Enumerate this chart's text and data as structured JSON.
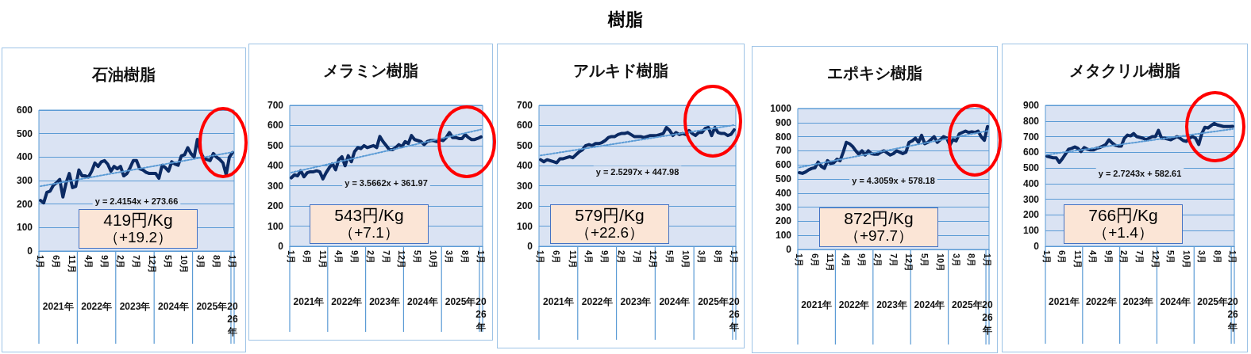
{
  "chart_data": [
    {
      "type": "line",
      "title": "石油樹脂",
      "categories": [
        "1月",
        null,
        null,
        null,
        null,
        "6月",
        null,
        null,
        null,
        null,
        "11月",
        null,
        null,
        null,
        null,
        "4月",
        null,
        null,
        null,
        null,
        "9月",
        null,
        null,
        null,
        null,
        "2月",
        null,
        null,
        null,
        null,
        "7月",
        null,
        null,
        null,
        null,
        "12月",
        null,
        null,
        null,
        null,
        "5月",
        null,
        null,
        null,
        null,
        "10月",
        null,
        null,
        null,
        null,
        "3月",
        null,
        null,
        null,
        null,
        "8月",
        null,
        null,
        null,
        null,
        "1月"
      ],
      "series": [
        {
          "color": "#0b2a63",
          "values": [
            215,
            205,
            250,
            255,
            280,
            290,
            305,
            230,
            290,
            330,
            270,
            275,
            345,
            320,
            320,
            315,
            340,
            375,
            360,
            380,
            385,
            370,
            340,
            360,
            350,
            360,
            320,
            330,
            355,
            385,
            385,
            350,
            345,
            335,
            330,
            330,
            330,
            310,
            365,
            355,
            340,
            380,
            370,
            365,
            405,
            410,
            440,
            415,
            400,
            475,
            420,
            395,
            390,
            385,
            415,
            400,
            390,
            375,
            325,
            400,
            419
          ]
        },
        {
          "name": "y = 2.4154x + 273.66",
          "color": "#5b9bd5",
          "line_style": "dotted",
          "values": [
            276,
            null,
            null,
            null,
            null,
            null,
            null,
            null,
            null,
            null,
            null,
            null,
            null,
            null,
            null,
            null,
            null,
            null,
            null,
            null,
            null,
            null,
            null,
            null,
            null,
            null,
            null,
            null,
            null,
            null,
            null,
            null,
            null,
            null,
            null,
            null,
            null,
            null,
            null,
            null,
            null,
            null,
            null,
            null,
            null,
            null,
            null,
            null,
            null,
            null,
            null,
            null,
            null,
            null,
            null,
            null,
            null,
            null,
            null,
            null,
            421
          ]
        }
      ],
      "ylim": [
        0,
        600
      ],
      "yticks": [
        0,
        100,
        200,
        300,
        400,
        500,
        600
      ],
      "grid": "y",
      "marker": "none",
      "annotations": [
        "419円/Kg",
        "（+19.2）",
        "2021年",
        "2022年",
        "2023年",
        "2024年",
        "2025年",
        "2026年",
        "樹脂"
      ]
    },
    {
      "type": "line",
      "title": "メラミン樹脂",
      "categories": [
        "1月",
        null,
        null,
        null,
        null,
        "6月",
        null,
        null,
        null,
        null,
        "11月",
        null,
        null,
        null,
        null,
        "4月",
        null,
        null,
        null,
        null,
        "9月",
        null,
        null,
        null,
        null,
        "2月",
        null,
        null,
        null,
        null,
        "7月",
        null,
        null,
        null,
        null,
        "12月",
        null,
        null,
        null,
        null,
        "5月",
        null,
        null,
        null,
        null,
        "10月",
        null,
        null,
        null,
        null,
        "3月",
        null,
        null,
        null,
        null,
        "8月",
        null,
        null,
        null,
        null,
        "1月"
      ],
      "series": [
        {
          "color": "#0b2a63",
          "values": [
            340,
            355,
            350,
            375,
            345,
            365,
            370,
            370,
            375,
            370,
            335,
            365,
            390,
            410,
            380,
            430,
            445,
            400,
            450,
            420,
            470,
            490,
            485,
            500,
            490,
            495,
            500,
            490,
            545,
            520,
            500,
            480,
            480,
            490,
            505,
            495,
            520,
            510,
            550,
            530,
            525,
            520,
            505,
            520,
            525,
            525,
            520,
            530,
            525,
            540,
            565,
            540,
            540,
            535,
            535,
            555,
            540,
            530,
            530,
            536,
            543
          ]
        },
        {
          "name": "y = 3.5662x + 361.97",
          "color": "#5b9bd5",
          "line_style": "dotted",
          "values": [
            366,
            null,
            null,
            null,
            null,
            null,
            null,
            null,
            null,
            null,
            null,
            null,
            null,
            null,
            null,
            null,
            null,
            null,
            null,
            null,
            null,
            null,
            null,
            null,
            null,
            null,
            null,
            null,
            null,
            null,
            null,
            null,
            null,
            null,
            null,
            null,
            null,
            null,
            null,
            null,
            null,
            null,
            null,
            null,
            null,
            null,
            null,
            null,
            null,
            null,
            null,
            null,
            null,
            null,
            null,
            null,
            null,
            null,
            null,
            null,
            580
          ]
        }
      ],
      "ylim": [
        0,
        700
      ],
      "yticks": [
        0,
        100,
        200,
        300,
        400,
        500,
        600,
        700
      ],
      "grid": "y",
      "marker": "none",
      "annotations": [
        "543円/Kg",
        "（+7.1）",
        "2021年",
        "2022年",
        "2023年",
        "2024年",
        "2025年",
        "2026年"
      ]
    },
    {
      "type": "line",
      "title": "アルキド樹脂",
      "categories": [
        "1月",
        null,
        null,
        null,
        null,
        "6月",
        null,
        null,
        null,
        null,
        "11月",
        null,
        null,
        null,
        null,
        "4月",
        null,
        null,
        null,
        null,
        "9月",
        null,
        null,
        null,
        null,
        "2月",
        null,
        null,
        null,
        null,
        "7月",
        null,
        null,
        null,
        null,
        "12月",
        null,
        null,
        null,
        null,
        "5月",
        null,
        null,
        null,
        null,
        "10月",
        null,
        null,
        null,
        null,
        "3月",
        null,
        null,
        null,
        null,
        "8月",
        null,
        null,
        null,
        null,
        "1月"
      ],
      "series": [
        {
          "color": "#0b2a63",
          "values": [
            430,
            420,
            430,
            425,
            420,
            415,
            435,
            435,
            440,
            445,
            440,
            455,
            470,
            480,
            500,
            505,
            500,
            510,
            510,
            515,
            525,
            540,
            545,
            545,
            555,
            560,
            560,
            565,
            555,
            545,
            545,
            545,
            540,
            545,
            550,
            550,
            550,
            555,
            560,
            590,
            575,
            550,
            565,
            555,
            560,
            555,
            575,
            560,
            550,
            565,
            565,
            585,
            590,
            550,
            590,
            565,
            560,
            560,
            550,
            556,
            579
          ]
        },
        {
          "name": "y = 2.5297x + 447.98",
          "color": "#5b9bd5",
          "line_style": "dotted",
          "values": [
            451,
            null,
            null,
            null,
            null,
            null,
            null,
            null,
            null,
            null,
            null,
            null,
            null,
            null,
            null,
            null,
            null,
            null,
            null,
            null,
            null,
            null,
            null,
            null,
            null,
            null,
            null,
            null,
            null,
            null,
            null,
            null,
            null,
            null,
            null,
            null,
            null,
            null,
            null,
            null,
            null,
            null,
            null,
            null,
            null,
            null,
            null,
            null,
            null,
            null,
            null,
            null,
            null,
            null,
            null,
            null,
            null,
            null,
            null,
            null,
            602
          ]
        }
      ],
      "ylim": [
        0,
        700
      ],
      "yticks": [
        0,
        100,
        200,
        300,
        400,
        500,
        600,
        700
      ],
      "grid": "y",
      "marker": "none",
      "annotations": [
        "579円/Kg",
        "（+22.6）",
        "2021年",
        "2022年",
        "2023年",
        "2024年",
        "2025年",
        "2026年"
      ]
    },
    {
      "type": "line",
      "title": "エポキシ樹脂",
      "categories": [
        "1月",
        null,
        null,
        null,
        null,
        "6月",
        null,
        null,
        null,
        null,
        "11月",
        null,
        null,
        null,
        null,
        "4月",
        null,
        null,
        null,
        null,
        "9月",
        null,
        null,
        null,
        null,
        "2月",
        null,
        null,
        null,
        null,
        "7月",
        null,
        null,
        null,
        null,
        "12月",
        null,
        null,
        null,
        null,
        "5月",
        null,
        null,
        null,
        null,
        "10月",
        null,
        null,
        null,
        null,
        "3月",
        null,
        null,
        null,
        null,
        "8月",
        null,
        null,
        null,
        null,
        "1月"
      ],
      "series": [
        {
          "color": "#0b2a63",
          "values": [
            545,
            540,
            550,
            565,
            575,
            580,
            620,
            590,
            575,
            630,
            610,
            615,
            640,
            630,
            690,
            760,
            750,
            730,
            700,
            675,
            700,
            670,
            700,
            680,
            675,
            675,
            690,
            700,
            685,
            670,
            680,
            700,
            690,
            680,
            690,
            760,
            770,
            790,
            760,
            810,
            750,
            760,
            780,
            800,
            760,
            780,
            800,
            790,
            740,
            780,
            770,
            820,
            830,
            840,
            830,
            835,
            830,
            840,
            800,
            774,
            872
          ]
        },
        {
          "name": "y = 4.3059x + 578.18",
          "color": "#5b9bd5",
          "line_style": "dotted",
          "values": [
            582,
            null,
            null,
            null,
            null,
            null,
            null,
            null,
            null,
            null,
            null,
            null,
            null,
            null,
            null,
            null,
            null,
            null,
            null,
            null,
            null,
            null,
            null,
            null,
            null,
            null,
            null,
            null,
            null,
            null,
            null,
            null,
            null,
            null,
            null,
            null,
            null,
            null,
            null,
            null,
            null,
            null,
            null,
            null,
            null,
            null,
            null,
            null,
            null,
            null,
            null,
            null,
            null,
            null,
            null,
            null,
            null,
            null,
            null,
            null,
            841
          ]
        }
      ],
      "ylim": [
        0,
        1000
      ],
      "yticks": [
        0,
        100,
        200,
        300,
        400,
        500,
        600,
        700,
        800,
        900,
        1000
      ],
      "grid": "y",
      "marker": "none",
      "annotations": [
        "872円/Kg",
        "（+97.7）",
        "2021年",
        "2022年",
        "2023年",
        "2024年",
        "2025年",
        "2026年"
      ]
    },
    {
      "type": "line",
      "title": "メタクリル樹脂",
      "categories": [
        "1月",
        null,
        null,
        null,
        null,
        "6月",
        null,
        null,
        null,
        null,
        "11月",
        null,
        null,
        null,
        null,
        "4月",
        null,
        null,
        null,
        null,
        "9月",
        null,
        null,
        null,
        null,
        "2月",
        null,
        null,
        null,
        null,
        "7月",
        null,
        null,
        null,
        null,
        "12月",
        null,
        null,
        null,
        null,
        "5月",
        null,
        null,
        null,
        null,
        "10月",
        null,
        null,
        null,
        null,
        "3月",
        null,
        null,
        null,
        null,
        "8月",
        null,
        null,
        null,
        null,
        "1月"
      ],
      "series": [
        {
          "color": "#0b2a63",
          "values": [
            575,
            570,
            565,
            565,
            535,
            560,
            590,
            620,
            625,
            635,
            625,
            605,
            630,
            620,
            615,
            615,
            625,
            630,
            640,
            650,
            680,
            660,
            645,
            640,
            640,
            690,
            710,
            705,
            720,
            700,
            695,
            690,
            680,
            690,
            700,
            700,
            740,
            690,
            690,
            685,
            680,
            690,
            700,
            690,
            675,
            670,
            690,
            700,
            690,
            650,
            720,
            760,
            755,
            770,
            785,
            775,
            770,
            765,
            765,
            765,
            766
          ]
        },
        {
          "name": "y = 2.7243x + 582.61",
          "color": "#5b9bd5",
          "line_style": "dotted",
          "values": [
            585,
            null,
            null,
            null,
            null,
            null,
            null,
            null,
            null,
            null,
            null,
            null,
            null,
            null,
            null,
            null,
            null,
            null,
            null,
            null,
            null,
            null,
            null,
            null,
            null,
            null,
            null,
            null,
            null,
            null,
            null,
            null,
            null,
            null,
            null,
            null,
            null,
            null,
            null,
            null,
            null,
            null,
            null,
            null,
            null,
            null,
            null,
            null,
            null,
            null,
            null,
            null,
            null,
            null,
            null,
            null,
            null,
            null,
            null,
            null,
            749
          ]
        }
      ],
      "ylim": [
        0,
        900
      ],
      "yticks": [
        0,
        100,
        200,
        300,
        400,
        500,
        600,
        700,
        800,
        900
      ],
      "grid": "y",
      "marker": "none",
      "annotations": [
        "766円/Kg",
        "（+1.4）",
        "2021年",
        "2022年",
        "2023年",
        "2024年",
        "2025年",
        "2026年"
      ]
    }
  ]
}
